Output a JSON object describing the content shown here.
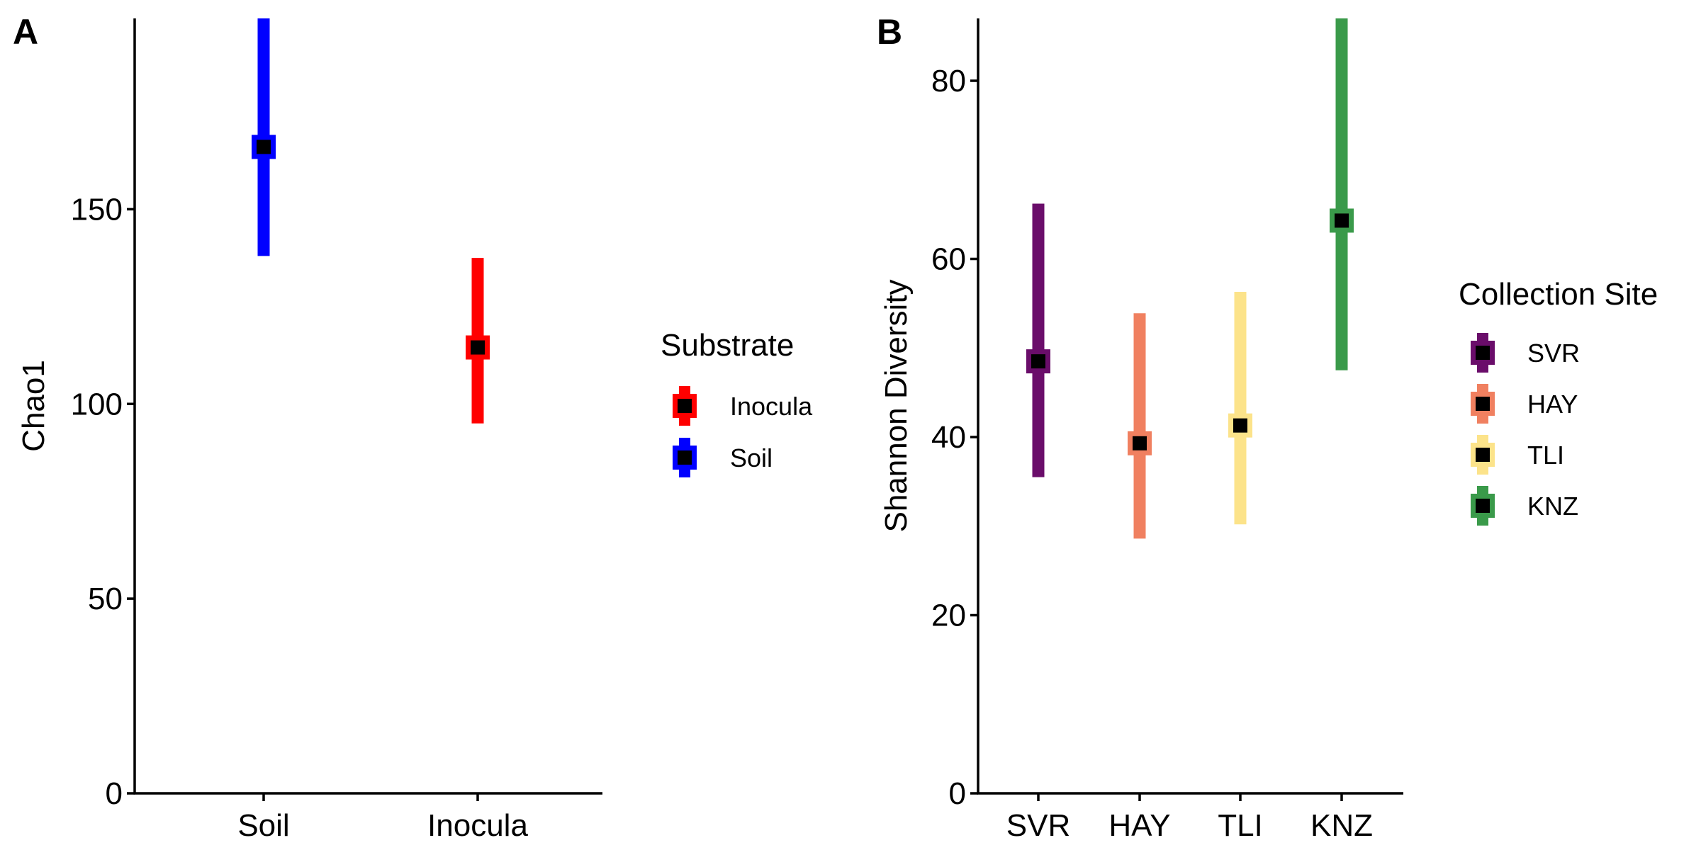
{
  "chart_data": [
    {
      "panel_label": "A",
      "type": "errorbar",
      "categories": [
        "Soil",
        "Inocula"
      ],
      "values": [
        166,
        114.5
      ],
      "lower": [
        138,
        95
      ],
      "upper": [
        199,
        137.5
      ],
      "colors": [
        "#0000ff",
        "#ff0000"
      ],
      "ylabel": "Chao1",
      "xlabel": "",
      "ylim": [
        0,
        199
      ],
      "yticks": [
        0,
        50,
        100,
        150
      ],
      "legend": {
        "title": "Substrate",
        "entries": [
          {
            "label": "Inocula",
            "color": "#ff0000"
          },
          {
            "label": "Soil",
            "color": "#0000ff"
          }
        ]
      }
    },
    {
      "panel_label": "B",
      "type": "errorbar",
      "categories": [
        "SVR",
        "HAY",
        "TLI",
        "KNZ"
      ],
      "values": [
        48.5,
        39.3,
        41.3,
        64.3
      ],
      "lower": [
        35.5,
        28.6,
        30.2,
        47.5
      ],
      "upper": [
        66.2,
        53.9,
        56.3,
        87
      ],
      "colors": [
        "#6a0d6a",
        "#f08060",
        "#fce38a",
        "#3a9a4a"
      ],
      "ylabel": "Shannon Diversity",
      "xlabel": "",
      "ylim": [
        0,
        87
      ],
      "yticks": [
        0,
        20,
        40,
        60,
        80
      ],
      "legend": {
        "title": "Collection Site",
        "entries": [
          {
            "label": "SVR",
            "color": "#6a0d6a"
          },
          {
            "label": "HAY",
            "color": "#f08060"
          },
          {
            "label": "TLI",
            "color": "#fce38a"
          },
          {
            "label": "KNZ",
            "color": "#3a9a4a"
          }
        ]
      }
    }
  ]
}
